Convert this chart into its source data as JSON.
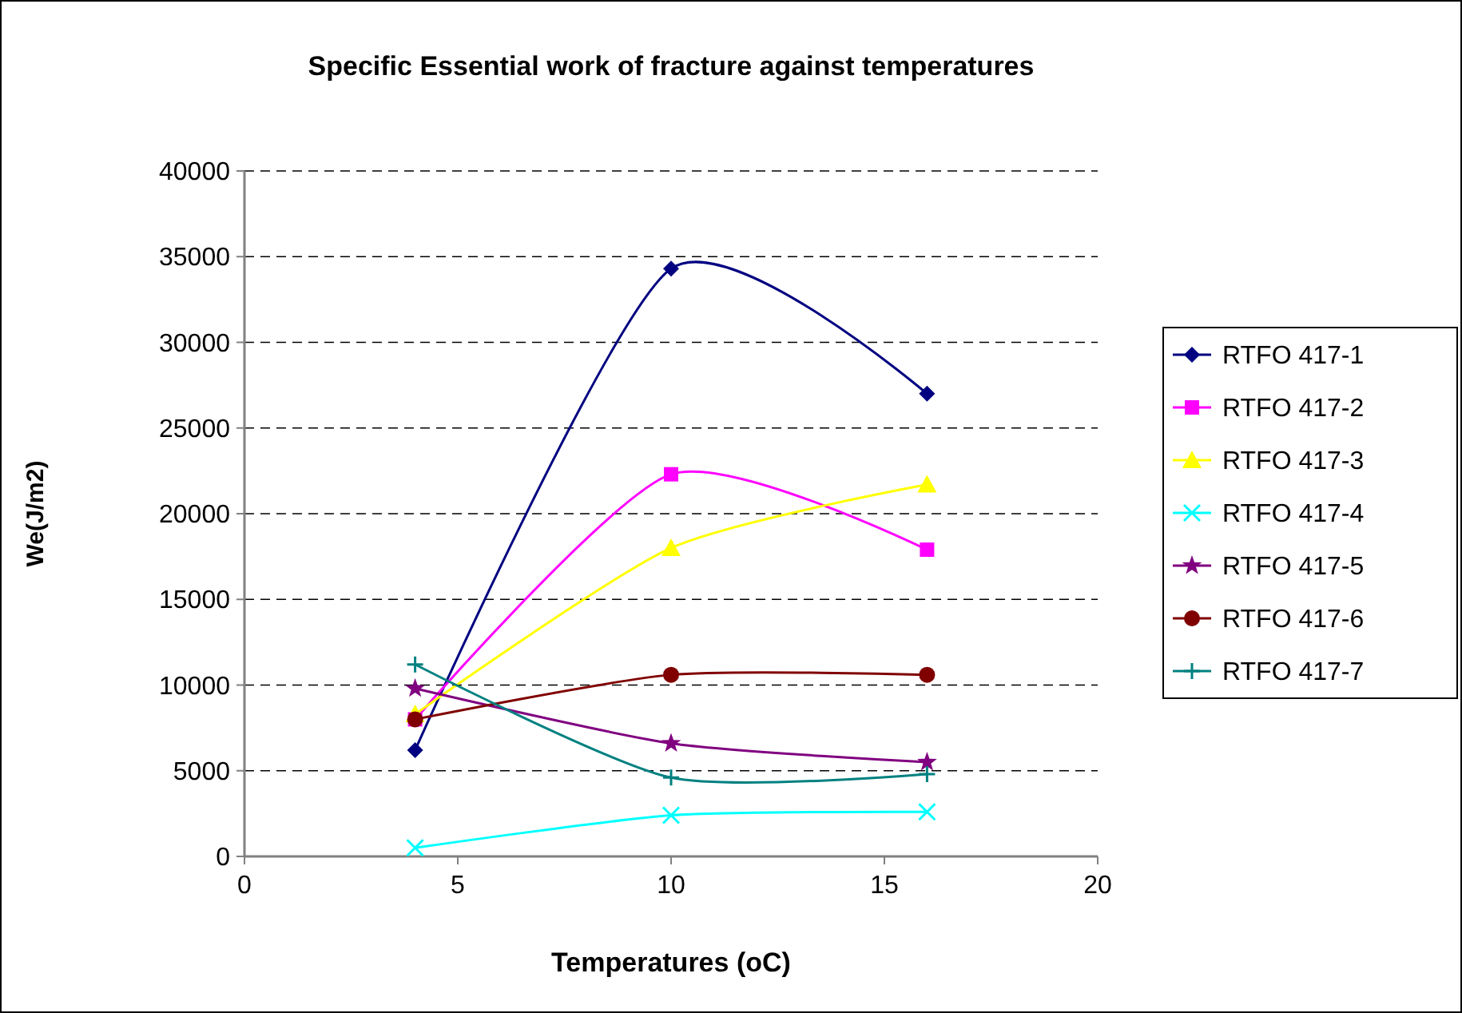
{
  "chart_data": {
    "type": "line",
    "title": "Specific Essential work of fracture against temperatures",
    "xlabel": "Temperatures (oC)",
    "ylabel": "We(J/m2)",
    "x": [
      4,
      10,
      16
    ],
    "xlim": [
      0,
      20
    ],
    "xticks": [
      0,
      5,
      10,
      15,
      20
    ],
    "ylim": [
      0,
      40000
    ],
    "yticks": [
      0,
      5000,
      10000,
      15000,
      20000,
      25000,
      30000,
      35000,
      40000
    ],
    "grid": "y",
    "legend": "right",
    "series": [
      {
        "name": "RTFO 417-1",
        "color": "#000080",
        "marker": "diamond",
        "values": [
          6200,
          34300,
          27000
        ]
      },
      {
        "name": "RTFO 417-2",
        "color": "#ff00ff",
        "marker": "square",
        "values": [
          8000,
          22300,
          17900
        ]
      },
      {
        "name": "RTFO 417-3",
        "color": "#ffff00",
        "marker": "triangle",
        "values": [
          8300,
          18000,
          21700
        ]
      },
      {
        "name": "RTFO 417-4",
        "color": "#00ffff",
        "marker": "cross",
        "values": [
          500,
          2400,
          2600
        ]
      },
      {
        "name": "RTFO 417-5",
        "color": "#800080",
        "marker": "star",
        "values": [
          9800,
          6600,
          5500
        ]
      },
      {
        "name": "RTFO 417-6",
        "color": "#800000",
        "marker": "circle",
        "values": [
          8000,
          10600,
          10600
        ]
      },
      {
        "name": "RTFO 417-7",
        "color": "#008080",
        "marker": "plus",
        "values": [
          11200,
          4600,
          4800
        ]
      }
    ]
  }
}
